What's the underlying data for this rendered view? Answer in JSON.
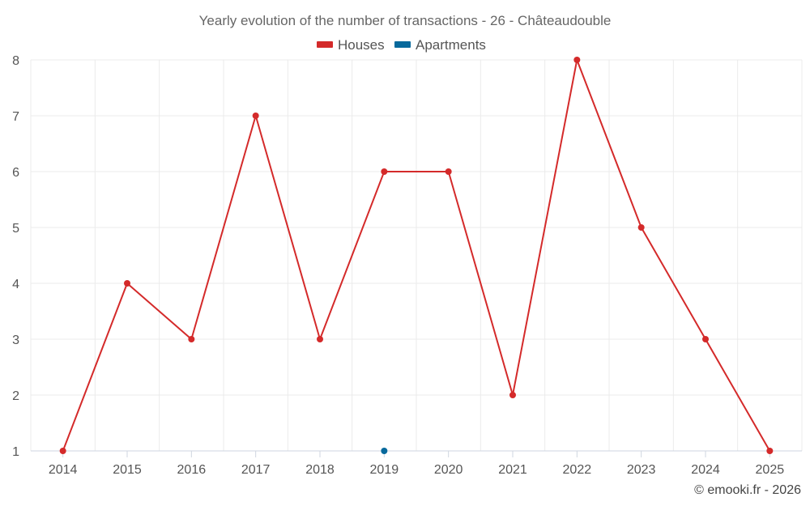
{
  "chart_data": {
    "type": "line",
    "title": "Yearly evolution of the number of transactions - 26 - Châteaudouble",
    "categories": [
      "2014",
      "2015",
      "2016",
      "2017",
      "2018",
      "2019",
      "2020",
      "2021",
      "2022",
      "2023",
      "2024",
      "2025"
    ],
    "series": [
      {
        "name": "Houses",
        "color": "#d42a2a",
        "values": [
          1,
          4,
          3,
          7,
          3,
          6,
          6,
          2,
          8,
          5,
          3,
          1
        ]
      },
      {
        "name": "Apartments",
        "color": "#07699c",
        "values": [
          null,
          null,
          null,
          null,
          null,
          1,
          null,
          null,
          null,
          null,
          null,
          null
        ]
      }
    ],
    "ylim": [
      1,
      8
    ],
    "yticks": [
      "1",
      "2",
      "3",
      "4",
      "5",
      "6",
      "7",
      "8"
    ],
    "xlabel": "",
    "ylabel": "",
    "grid": true,
    "legend_position": "top-center"
  },
  "credit": "© emooki.fr - 2026"
}
